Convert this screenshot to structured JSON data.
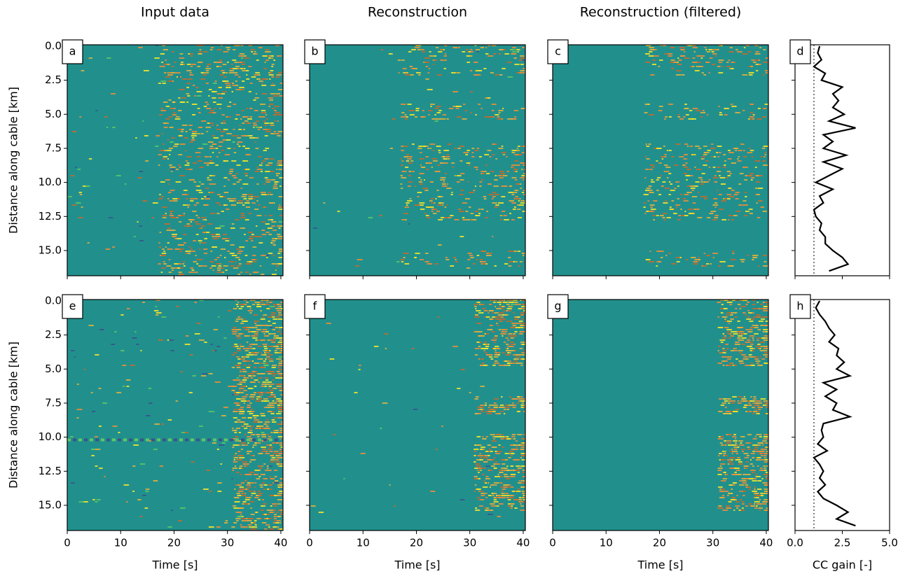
{
  "chart_data": [
    {
      "type": "image",
      "label": "a",
      "title": "Input data",
      "xlim": [
        0,
        40.4
      ],
      "xticks": [
        0,
        10,
        20,
        30,
        40
      ],
      "show_xtick_labels": false,
      "ylim": [
        16.85,
        -0.1
      ],
      "yticks": [
        {
          "value": 0,
          "label": "0.0"
        },
        2.5,
        {
          "value": 5,
          "label": "5.0"
        },
        7.5,
        {
          "value": 10,
          "label": "10.0"
        },
        12.5,
        {
          "value": 15,
          "label": "15.0"
        }
      ],
      "show_ytick_labels": true,
      "ylabel": "Distance along cable [km]"
    },
    {
      "type": "image",
      "label": "b",
      "title": "Reconstruction",
      "xlim": [
        0,
        40.4
      ],
      "xticks": [
        0,
        10,
        20,
        30,
        40
      ],
      "show_xtick_labels": false,
      "ylim": [
        16.85,
        -0.1
      ],
      "yticks": [
        0,
        2.5,
        5,
        7.5,
        10,
        12.5,
        15
      ],
      "show_ytick_labels": false
    },
    {
      "type": "image",
      "label": "c",
      "title": "Reconstruction (filtered)",
      "xlim": [
        0,
        40.4
      ],
      "xticks": [
        0,
        10,
        20,
        30,
        40
      ],
      "show_xtick_labels": false,
      "ylim": [
        16.85,
        -0.1
      ],
      "yticks": [
        0,
        2.5,
        5,
        7.5,
        10,
        12.5,
        15
      ],
      "show_ytick_labels": false
    },
    {
      "type": "line",
      "label": "d",
      "xlim": [
        0,
        5
      ],
      "xticks": [
        0,
        2.5,
        5
      ],
      "show_xtick_labels": false,
      "ylim": [
        16.85,
        -0.1
      ],
      "yticks": [
        0,
        2.5,
        5,
        7.5,
        10,
        12.5,
        15
      ],
      "show_ytick_labels": false,
      "reference": {
        "value": 1,
        "color": "#808080"
      },
      "distance": [
        0,
        0.5,
        1,
        1.5,
        2,
        2.5,
        3,
        3.5,
        4,
        4.5,
        5,
        5.5,
        6,
        6.5,
        7,
        7.5,
        8,
        8.5,
        9,
        9.5,
        10,
        10.5,
        11,
        11.5,
        12,
        12.5,
        13,
        13.5,
        14,
        14.5,
        15,
        15.5,
        16,
        16.5
      ],
      "series": [
        {
          "color": "#000000",
          "values": [
            1.3,
            1.2,
            1.4,
            1.0,
            1.6,
            1.4,
            2.5,
            2.0,
            2.3,
            2.0,
            2.6,
            1.8,
            3.2,
            1.5,
            2.0,
            1.5,
            2.7,
            1.5,
            2.5,
            1.8,
            1.1,
            2.0,
            1.3,
            1.5,
            1.0,
            1.1,
            1.4,
            1.3,
            1.6,
            1.6,
            2.0,
            2.5,
            2.8,
            1.8
          ]
        }
      ]
    },
    {
      "type": "image",
      "label": "e",
      "xlim": [
        0,
        40.4
      ],
      "xticks": [
        0,
        10,
        20,
        30,
        40
      ],
      "show_xtick_labels": true,
      "xlabel": "Time [s]",
      "ylim": [
        16.85,
        -0.1
      ],
      "yticks": [
        {
          "value": 0,
          "label": "0.0"
        },
        2.5,
        {
          "value": 5,
          "label": "5.0"
        },
        7.5,
        {
          "value": 10,
          "label": "10.0"
        },
        12.5,
        {
          "value": 15,
          "label": "15.0"
        }
      ],
      "show_ytick_labels": true,
      "ylabel": "Distance along cable [km]"
    },
    {
      "type": "image",
      "label": "f",
      "xlim": [
        0,
        40.4
      ],
      "xticks": [
        0,
        10,
        20,
        30,
        40
      ],
      "show_xtick_labels": true,
      "xlabel": "Time [s]",
      "ylim": [
        16.85,
        -0.1
      ],
      "yticks": [
        0,
        2.5,
        5,
        7.5,
        10,
        12.5,
        15
      ],
      "show_ytick_labels": false
    },
    {
      "type": "image",
      "label": "g",
      "xlim": [
        0,
        40.4
      ],
      "xticks": [
        0,
        10,
        20,
        30,
        40
      ],
      "show_xtick_labels": true,
      "xlabel": "Time [s]",
      "ylim": [
        16.85,
        -0.1
      ],
      "yticks": [
        0,
        2.5,
        5,
        7.5,
        10,
        12.5,
        15
      ],
      "show_ytick_labels": false
    },
    {
      "type": "line",
      "label": "h",
      "xlim": [
        0,
        5
      ],
      "xticks": [
        {
          "value": 0,
          "label": "0.0"
        },
        2.5,
        {
          "value": 5,
          "label": "5.0"
        }
      ],
      "show_xtick_labels": true,
      "xlabel": "CC gain [-]",
      "ylim": [
        16.85,
        -0.1
      ],
      "yticks": [
        0,
        2.5,
        5,
        7.5,
        10,
        12.5,
        15
      ],
      "show_ytick_labels": false,
      "reference": {
        "value": 1,
        "color": "#808080"
      },
      "distance": [
        0,
        0.5,
        1,
        1.5,
        2,
        2.5,
        3,
        3.5,
        4,
        4.5,
        5,
        5.5,
        6,
        6.5,
        7,
        7.5,
        8,
        8.5,
        9,
        9.5,
        10,
        10.5,
        11,
        11.5,
        12,
        12.5,
        13,
        13.5,
        14,
        14.5,
        15,
        15.5,
        16,
        16.5
      ],
      "series": [
        {
          "color": "#000000",
          "values": [
            1.3,
            1.1,
            1.3,
            1.6,
            1.8,
            2.1,
            1.8,
            2.3,
            2.2,
            2.6,
            2.2,
            2.9,
            1.5,
            2.2,
            1.6,
            2.2,
            2.0,
            2.9,
            1.5,
            1.4,
            1.5,
            1.2,
            1.7,
            1.0,
            1.3,
            1.5,
            1.3,
            1.6,
            1.2,
            1.5,
            2.2,
            2.8,
            2.2,
            3.2
          ]
        }
      ]
    }
  ]
}
